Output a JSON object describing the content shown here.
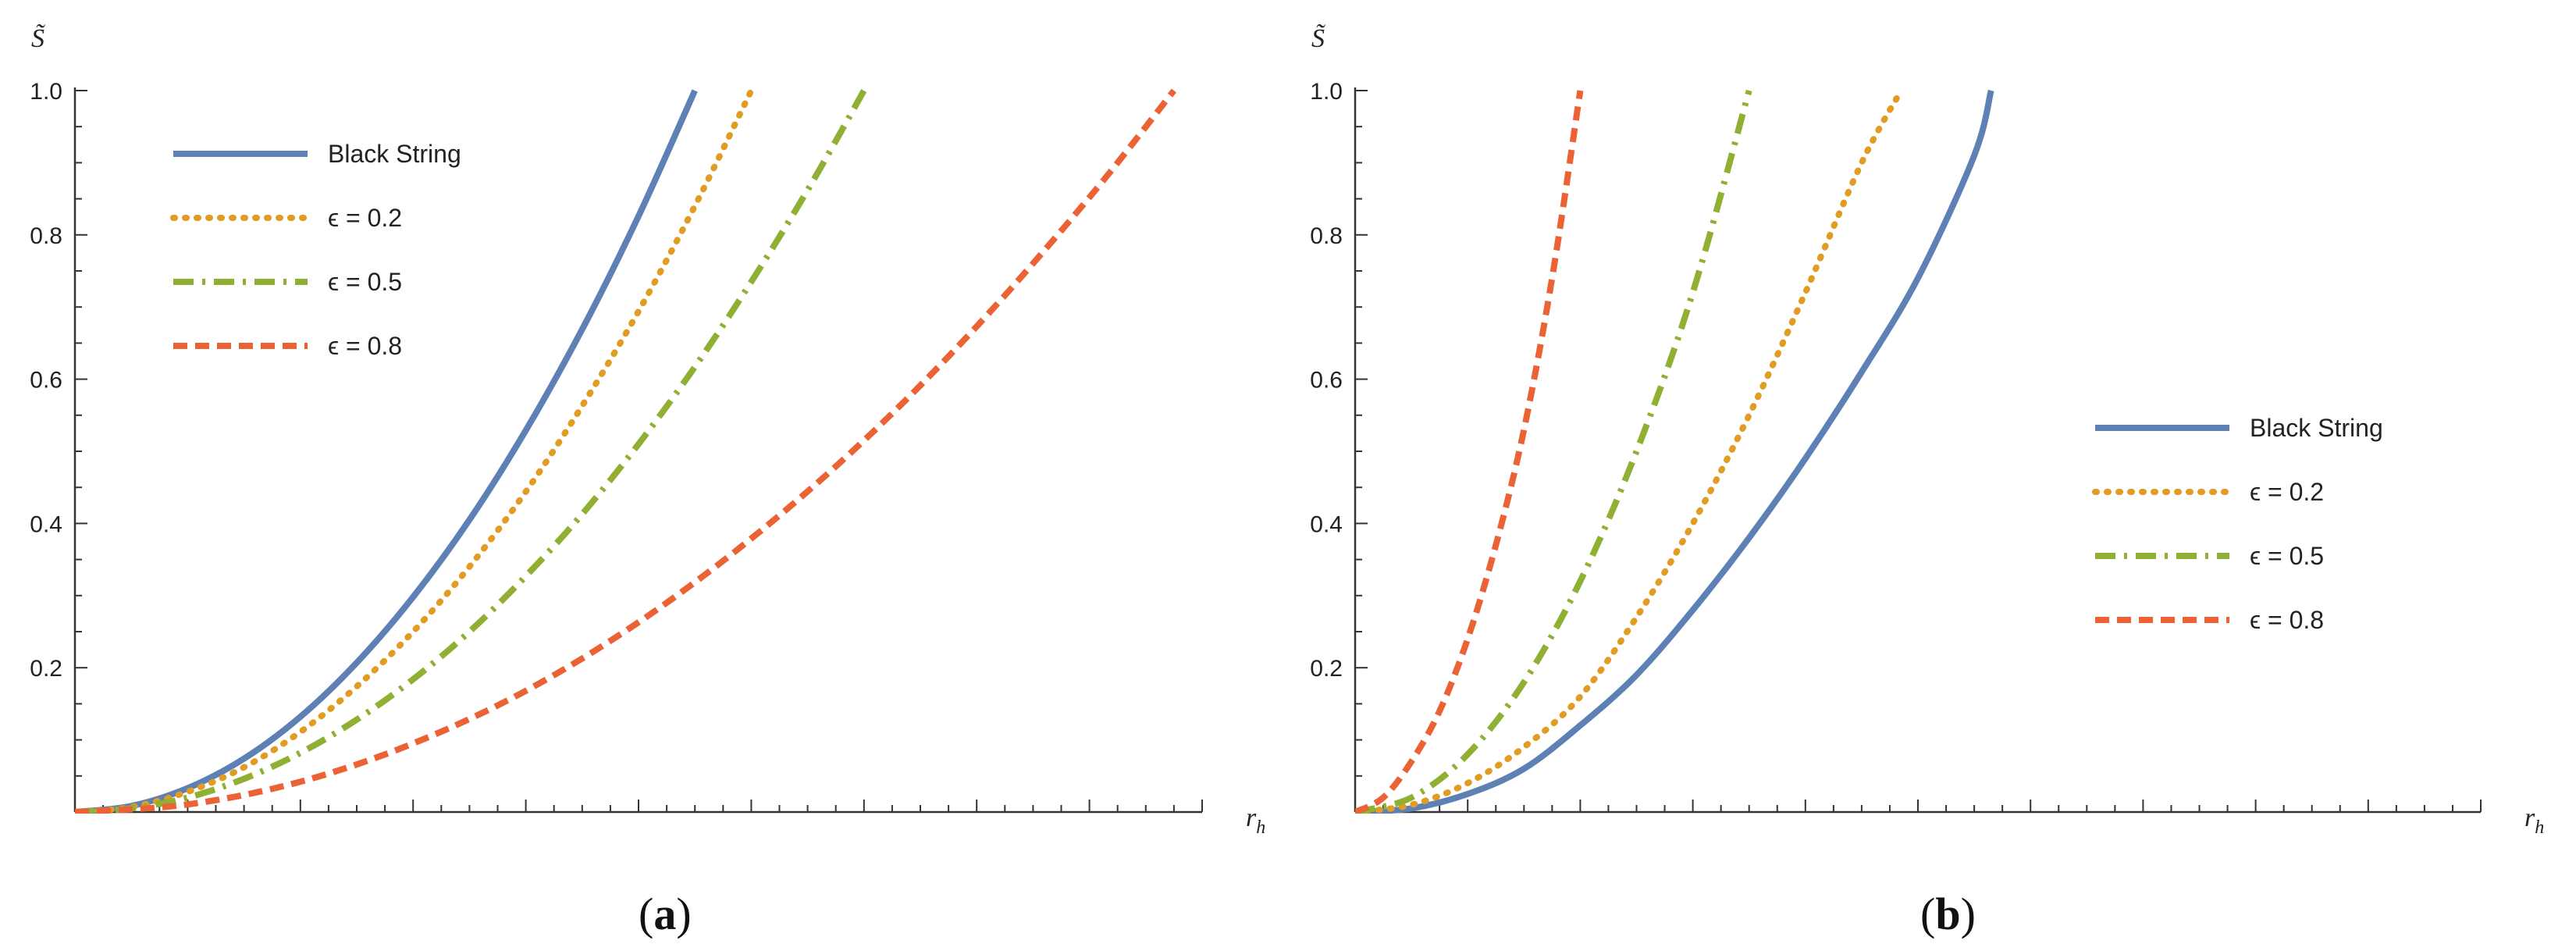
{
  "chart_data": [
    {
      "type": "line",
      "caption": {
        "open": "(",
        "letter": "a",
        "close": ")"
      },
      "xlabel": "r",
      "xlabel_sub": "h",
      "ylabel": "S̃",
      "xlim": [
        0,
        2.0
      ],
      "ylim": [
        0,
        1.0
      ],
      "yticks": [
        0.2,
        0.4,
        0.6,
        0.8,
        1.0
      ],
      "yticklabels": [
        "0.2",
        "0.4",
        "0.6",
        "0.8",
        "1.0"
      ],
      "legend_position": "top-left",
      "series": [
        {
          "name": "Black String",
          "style": "solid",
          "color": "#5e81b5",
          "x": [
            0,
            0.1,
            0.2,
            0.3,
            0.4,
            0.5,
            0.6,
            0.7,
            0.8,
            0.9,
            1.0,
            1.1
          ],
          "y": [
            0,
            0.0083,
            0.033,
            0.074,
            0.132,
            0.207,
            0.298,
            0.405,
            0.529,
            0.669,
            0.826,
            1.0
          ]
        },
        {
          "name": "ϵ = 0.2",
          "style": "dotted",
          "color": "#e19c24",
          "x": [
            0,
            0.1,
            0.2,
            0.3,
            0.4,
            0.5,
            0.6,
            0.7,
            0.8,
            0.9,
            1.0,
            1.1,
            1.2
          ],
          "y": [
            0,
            0.0069,
            0.028,
            0.062,
            0.111,
            0.174,
            0.25,
            0.34,
            0.444,
            0.563,
            0.694,
            0.84,
            1.0
          ]
        },
        {
          "name": "ϵ = 0.5",
          "style": "dashdot",
          "color": "#8fb032",
          "x": [
            0,
            0.1,
            0.2,
            0.3,
            0.4,
            0.5,
            0.6,
            0.7,
            0.8,
            0.9,
            1.0,
            1.1,
            1.2,
            1.3,
            1.4
          ],
          "y": [
            0,
            0.0051,
            0.02,
            0.046,
            0.082,
            0.128,
            0.184,
            0.25,
            0.327,
            0.413,
            0.51,
            0.617,
            0.735,
            0.862,
            1.0
          ]
        },
        {
          "name": "ϵ = 0.8",
          "style": "dashed",
          "color": "#eb6235",
          "x": [
            0,
            0.2,
            0.4,
            0.6,
            0.8,
            1.0,
            1.2,
            1.4,
            1.6,
            1.8,
            1.95
          ],
          "y": [
            0,
            0.0105,
            0.042,
            0.095,
            0.168,
            0.263,
            0.379,
            0.515,
            0.673,
            0.852,
            1.0
          ]
        }
      ]
    },
    {
      "type": "line",
      "caption": {
        "open": "(",
        "letter": "b",
        "close": ")"
      },
      "xlabel": "r",
      "xlabel_sub": "h",
      "ylabel": "S̃",
      "xlim": [
        0,
        2.0
      ],
      "ylim": [
        0,
        1.0
      ],
      "yticks": [
        0.2,
        0.4,
        0.6,
        0.8,
        1.0
      ],
      "yticklabels": [
        "0.2",
        "0.4",
        "0.6",
        "0.8",
        "1.0"
      ],
      "legend_position": "middle-right",
      "series": [
        {
          "name": "Black String",
          "style": "solid",
          "color": "#5e81b5",
          "x": [
            0,
            0.1,
            0.2,
            0.3,
            0.4,
            0.5,
            0.6,
            0.7,
            0.8,
            0.9,
            1.0,
            1.1,
            1.13
          ],
          "y": [
            0,
            0.005,
            0.025,
            0.06,
            0.12,
            0.19,
            0.28,
            0.38,
            0.49,
            0.61,
            0.74,
            0.91,
            1.0
          ]
        },
        {
          "name": "ϵ = 0.2",
          "style": "dotted",
          "color": "#e19c24",
          "x": [
            0,
            0.1,
            0.2,
            0.3,
            0.4,
            0.5,
            0.6,
            0.7,
            0.8,
            0.9,
            0.97
          ],
          "y": [
            0,
            0.01,
            0.04,
            0.09,
            0.16,
            0.27,
            0.4,
            0.55,
            0.72,
            0.9,
            1.0
          ]
        },
        {
          "name": "ϵ = 0.5",
          "style": "dashdot",
          "color": "#8fb032",
          "x": [
            0,
            0.1,
            0.2,
            0.3,
            0.4,
            0.5,
            0.6,
            0.7
          ],
          "y": [
            0,
            0.02,
            0.08,
            0.18,
            0.32,
            0.5,
            0.72,
            1.0
          ]
        },
        {
          "name": "ϵ = 0.8",
          "style": "dashed",
          "color": "#eb6235",
          "x": [
            0,
            0.05,
            0.1,
            0.15,
            0.2,
            0.25,
            0.3,
            0.35,
            0.4
          ],
          "y": [
            0,
            0.02,
            0.07,
            0.14,
            0.24,
            0.37,
            0.53,
            0.74,
            1.0
          ]
        }
      ]
    }
  ]
}
